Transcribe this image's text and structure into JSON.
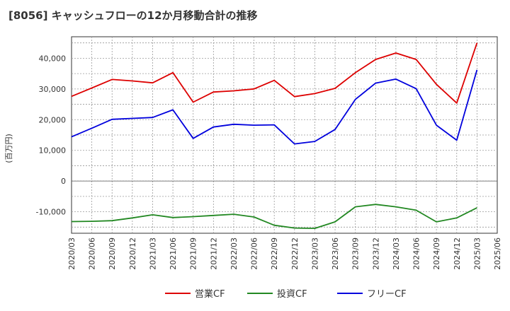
{
  "chart_data": {
    "type": "line",
    "title": "[8056]  キャッシュフローの12か月移動合計の推移",
    "ylabel": "(百万円)",
    "xlabel": "",
    "ylim": [
      -17000,
      47000
    ],
    "y_ticks": [
      40000,
      30000,
      20000,
      10000,
      0,
      -10000
    ],
    "y_tick_labels": [
      "40,000",
      "30,000",
      "20,000",
      "10,000",
      "0",
      "-10,000"
    ],
    "categories": [
      "2020/03",
      "2020/06",
      "2020/09",
      "2020/12",
      "2021/03",
      "2021/06",
      "2021/09",
      "2021/12",
      "2022/03",
      "2022/06",
      "2022/09",
      "2022/12",
      "2023/03",
      "2023/06",
      "2023/09",
      "2023/12",
      "2024/03",
      "2024/06",
      "2024/09",
      "2024/12",
      "2025/03",
      "2025/06"
    ],
    "series": [
      {
        "name": "営業CF",
        "color": "#dd0000",
        "values": [
          27600,
          30300,
          33100,
          32600,
          32000,
          35300,
          25700,
          29000,
          29400,
          30000,
          32800,
          27500,
          28500,
          30200,
          35300,
          39600,
          41700,
          39600,
          31500,
          25400,
          45000,
          null
        ]
      },
      {
        "name": "投資CF",
        "color": "#228822",
        "values": [
          -13200,
          -13100,
          -12900,
          -12000,
          -11000,
          -11900,
          -11600,
          -11200,
          -10800,
          -11700,
          -14400,
          -15300,
          -15400,
          -13300,
          -8400,
          -7600,
          -8400,
          -9500,
          -13300,
          -12000,
          -8700,
          null
        ]
      },
      {
        "name": "フリーCF",
        "color": "#0000dd",
        "values": [
          14400,
          17200,
          20100,
          20400,
          20700,
          23200,
          13900,
          17600,
          18500,
          18200,
          18300,
          12100,
          12900,
          16800,
          26600,
          31900,
          33200,
          30100,
          18200,
          13300,
          36200,
          null
        ]
      }
    ]
  }
}
